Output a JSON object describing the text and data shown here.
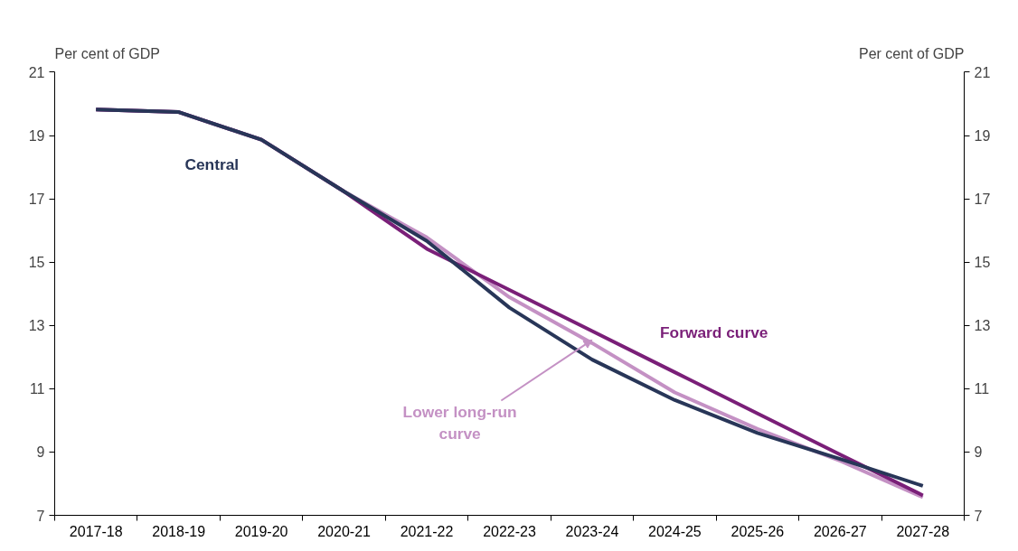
{
  "chart_data": {
    "type": "line",
    "ylabel": "Per cent of GDP",
    "y2label": "Per cent of GDP",
    "categories": [
      "2017-18",
      "2018-19",
      "2019-20",
      "2020-21",
      "2021-22",
      "2022-23",
      "2023-24",
      "2024-25",
      "2025-26",
      "2026-27",
      "2027-28"
    ],
    "ylim": [
      7,
      21
    ],
    "yticks": [
      7,
      9,
      11,
      13,
      15,
      17,
      19,
      21
    ],
    "y2lim": [
      7,
      21
    ],
    "y2ticks": [
      7,
      9,
      11,
      13,
      15,
      17,
      19,
      21
    ],
    "grid": false,
    "marker": "none",
    "line_style": "solid",
    "series": [
      {
        "name": "Central",
        "color": "#283658",
        "values": [
          19.82,
          19.74,
          18.87,
          17.23,
          15.67,
          13.56,
          11.92,
          10.64,
          9.6,
          8.78,
          7.93
        ]
      },
      {
        "name": "Forward  curve",
        "color": "#7a1f78",
        "values": [
          19.82,
          19.74,
          18.87,
          17.23,
          15.42,
          14.12,
          12.82,
          11.52,
          10.22,
          8.92,
          7.63
        ]
      },
      {
        "name": "Lower long-run curve",
        "color": "#c491c4",
        "values": [
          19.82,
          19.74,
          18.87,
          17.23,
          15.78,
          13.89,
          12.44,
          10.88,
          9.73,
          8.72,
          7.57
        ]
      }
    ]
  }
}
